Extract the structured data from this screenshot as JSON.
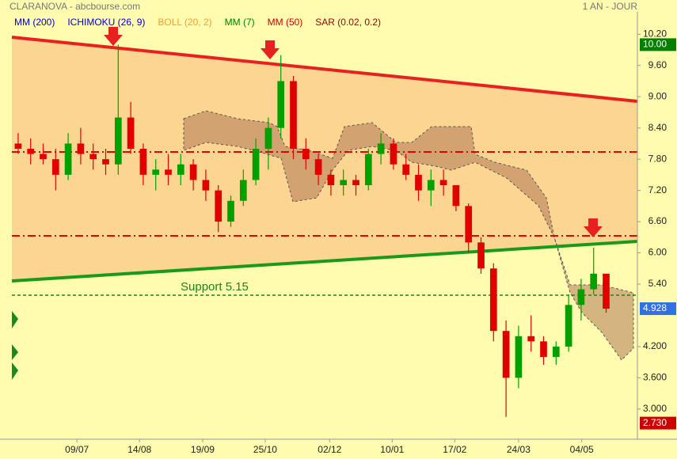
{
  "header": {
    "title": "CLARANOVA - abcbourse.com",
    "timeframe": "1 AN - JOUR"
  },
  "indicators": [
    {
      "label": "MM (200)",
      "color": "#0000cc"
    },
    {
      "label": "ICHIMOKU (26, 9)",
      "color": "#0000cc"
    },
    {
      "label": "BOLL (20, 2)",
      "color": "#f0a030"
    },
    {
      "label": "MM (7)",
      "color": "#008000"
    },
    {
      "label": "MM (50)",
      "color": "#cc0000"
    },
    {
      "label": "SAR (0.02, 0.2)",
      "color": "#990000"
    }
  ],
  "chart_data": {
    "type": "candlestick",
    "open": [
      8.1,
      8.0,
      7.9,
      7.8,
      7.5,
      8.1,
      7.9,
      7.8,
      7.7,
      8.6,
      8.0,
      7.5,
      7.6,
      7.5,
      7.7,
      7.4,
      7.2,
      6.6,
      7.0,
      7.4,
      8.0,
      8.4,
      9.3,
      8.0,
      7.8,
      7.5,
      7.3,
      7.4,
      7.3,
      7.9,
      8.1,
      7.7,
      7.5,
      7.2,
      7.4,
      7.3,
      6.9,
      6.2,
      5.7,
      4.5,
      3.6,
      4.4,
      4.3,
      4.0,
      4.2,
      5.0,
      5.3,
      5.6
    ],
    "high": [
      8.3,
      8.2,
      8.1,
      8.0,
      8.3,
      8.4,
      8.1,
      8.0,
      10.0,
      8.9,
      8.1,
      7.8,
      7.9,
      7.9,
      7.8,
      7.6,
      7.3,
      7.1,
      7.6,
      8.2,
      8.6,
      9.8,
      9.4,
      8.2,
      7.9,
      7.6,
      7.6,
      7.5,
      8.0,
      8.3,
      8.2,
      7.9,
      7.7,
      7.6,
      7.6,
      7.3,
      6.95,
      6.3,
      5.8,
      4.7,
      4.6,
      4.8,
      4.4,
      4.3,
      5.2,
      5.5,
      6.1,
      5.6
    ],
    "low": [
      7.9,
      7.7,
      7.7,
      7.2,
      7.4,
      7.7,
      7.6,
      7.5,
      7.5,
      7.9,
      7.3,
      7.2,
      7.3,
      7.3,
      7.2,
      7.0,
      6.4,
      6.5,
      6.9,
      7.3,
      7.6,
      8.2,
      7.8,
      7.6,
      7.3,
      7.1,
      7.1,
      7.1,
      7.2,
      7.7,
      7.6,
      7.4,
      7.0,
      6.9,
      7.1,
      6.8,
      6.0,
      5.6,
      4.3,
      2.85,
      3.4,
      4.1,
      3.85,
      3.85,
      4.1,
      4.7,
      5.2,
      4.85
    ],
    "close": [
      8.0,
      7.9,
      7.8,
      7.5,
      8.1,
      7.9,
      7.8,
      7.7,
      8.6,
      8.0,
      7.5,
      7.6,
      7.5,
      7.7,
      7.4,
      7.2,
      6.6,
      7.0,
      7.4,
      8.0,
      8.4,
      9.3,
      8.0,
      7.8,
      7.5,
      7.3,
      7.4,
      7.3,
      7.9,
      8.1,
      7.7,
      7.5,
      7.2,
      7.4,
      7.3,
      6.9,
      6.2,
      5.7,
      4.5,
      3.6,
      4.4,
      4.3,
      4.0,
      4.2,
      5.0,
      5.3,
      5.6,
      4.928
    ],
    "up_color": "#00a000",
    "down_color": "#e00000",
    "xlim": [
      -0.5,
      49.5
    ],
    "xticks": [
      {
        "value": 4.7,
        "label": "09/07"
      },
      {
        "value": 9.7,
        "label": "14/08"
      },
      {
        "value": 14.75,
        "label": "19/09"
      },
      {
        "value": 19.75,
        "label": "25/10"
      },
      {
        "value": 24.9,
        "label": "02/12"
      },
      {
        "value": 29.9,
        "label": "10/01"
      },
      {
        "value": 34.9,
        "label": "17/02"
      },
      {
        "value": 40,
        "label": "24/03"
      },
      {
        "value": 45.05,
        "label": "04/05"
      }
    ],
    "ylim": [
      2.42,
      10.63
    ],
    "yticks": [
      {
        "value": 10.2,
        "label": "10.20"
      },
      {
        "value": 9.6,
        "label": "9.60"
      },
      {
        "value": 9,
        "label": "9.00"
      },
      {
        "value": 8.4,
        "label": "8.40"
      },
      {
        "value": 7.8,
        "label": "7.80"
      },
      {
        "value": 7.2,
        "label": "7.20"
      },
      {
        "value": 6.6,
        "label": "6.60"
      },
      {
        "value": 6,
        "label": "6.00"
      },
      {
        "value": 5.4,
        "label": "5.40"
      },
      {
        "value": 4.2,
        "label": "4.200"
      },
      {
        "value": 3.6,
        "label": "3.600"
      },
      {
        "value": 3,
        "label": "3.000"
      }
    ],
    "price_tags": [
      {
        "value": 10,
        "label": "10.00",
        "color": "#008000"
      },
      {
        "value": 4.928,
        "label": "4.928",
        "color": "#3070e0"
      },
      {
        "value": 2.73,
        "label": "2.730",
        "color": "#cc0000"
      }
    ],
    "annotation": "Support 5.15"
  }
}
